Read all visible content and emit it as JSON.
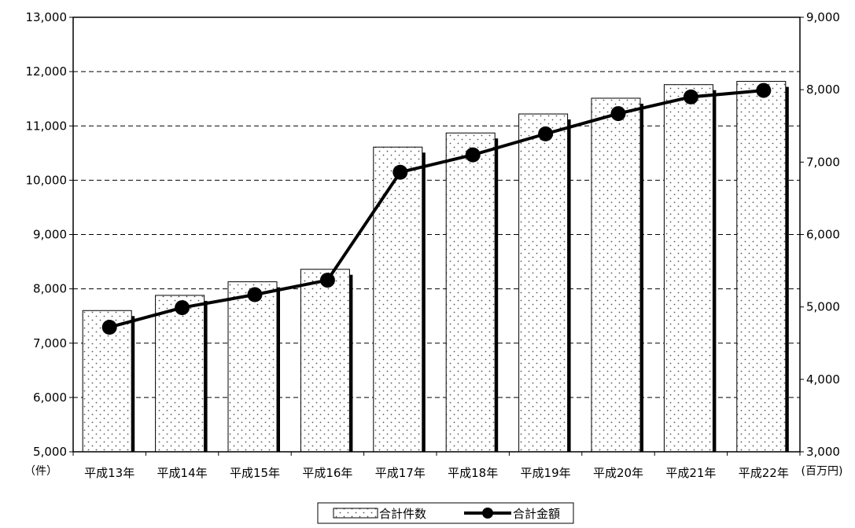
{
  "chart_data": {
    "type": "bar",
    "categories": [
      "平成13年",
      "平成14年",
      "平成15年",
      "平成16年",
      "平成17年",
      "平成18年",
      "平成19年",
      "平成20年",
      "平成21年",
      "平成22年"
    ],
    "series": [
      {
        "name": "合計件数",
        "type": "bar",
        "axis": "left",
        "values": [
          7600,
          7880,
          8130,
          8360,
          10610,
          10870,
          11220,
          11510,
          11760,
          11820
        ]
      },
      {
        "name": "合計金額",
        "type": "line",
        "axis": "right",
        "values": [
          4720,
          4990,
          5170,
          5370,
          6860,
          7100,
          7390,
          7670,
          7900,
          7990
        ]
      }
    ],
    "left_axis": {
      "unit": "（件）",
      "ylim": [
        5000,
        13000
      ],
      "ticks": [
        "5,000",
        "6,000",
        "7,000",
        "8,000",
        "9,000",
        "10,000",
        "11,000",
        "12,000",
        "13,000"
      ]
    },
    "right_axis": {
      "unit": "(百万円)",
      "ylim": [
        3000,
        9000
      ],
      "ticks": [
        "3,000",
        "4,000",
        "5,000",
        "6,000",
        "7,000",
        "8,000",
        "9,000"
      ]
    },
    "grid": "horizontal dashed",
    "legend_position": "bottom-center",
    "colors": {
      "bar_fill": "#ffffff",
      "bar_pattern": "dotted",
      "line": "#000000",
      "marker": "#000000",
      "axis": "#000000"
    }
  }
}
